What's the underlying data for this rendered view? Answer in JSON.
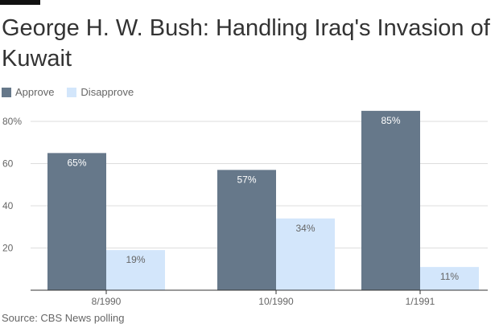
{
  "chart_data": {
    "type": "bar",
    "title": "George H. W. Bush: Handling Iraq's Invasion of Kuwait",
    "categories": [
      "8/1990",
      "10/1990",
      "1/1991"
    ],
    "series": [
      {
        "name": "Approve",
        "values": [
          65,
          57,
          85
        ],
        "labels": [
          "65%",
          "57%",
          "85%"
        ],
        "color": "#66788a",
        "label_color": "#ffffff"
      },
      {
        "name": "Disapprove",
        "values": [
          19,
          34,
          11
        ],
        "labels": [
          "19%",
          "34%",
          "11%"
        ],
        "color": "#d3e6fb",
        "label_color": "#666666"
      }
    ],
    "yticks": [
      {
        "value": 20,
        "label": "20"
      },
      {
        "value": 40,
        "label": "40"
      },
      {
        "value": 60,
        "label": "60"
      },
      {
        "value": 80,
        "label": "80%"
      }
    ],
    "ylim": [
      0,
      85
    ],
    "xlabel": "",
    "ylabel": "",
    "grid": true,
    "legend_position": "top-left"
  },
  "source": "Source: CBS News polling"
}
